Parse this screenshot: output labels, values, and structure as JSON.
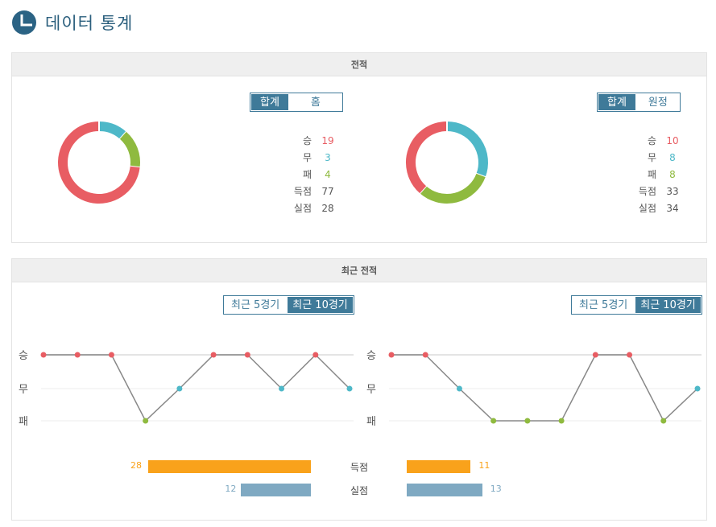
{
  "page": {
    "title": "데이터 통계"
  },
  "colors": {
    "win": "#e85d63",
    "draw": "#4eb8c8",
    "loss": "#8fba3f",
    "accent": "#3f7a99",
    "scored": "#f9a21b",
    "conceded": "#7fa9c2"
  },
  "record": {
    "title": "전적",
    "home": {
      "tabs": [
        {
          "label": "합계",
          "active": true
        },
        {
          "label": "홈",
          "active": false
        }
      ],
      "stats": [
        {
          "label": "승",
          "value": "19"
        },
        {
          "label": "무",
          "value": "3"
        },
        {
          "label": "패",
          "value": "4"
        },
        {
          "label": "득점",
          "value": "77"
        },
        {
          "label": "실점",
          "value": "28"
        }
      ],
      "donut": {
        "win": 19,
        "draw": 3,
        "loss": 4
      }
    },
    "away": {
      "tabs": [
        {
          "label": "합계",
          "active": true
        },
        {
          "label": "원정",
          "active": false
        }
      ],
      "stats": [
        {
          "label": "승",
          "value": "10"
        },
        {
          "label": "무",
          "value": "8"
        },
        {
          "label": "패",
          "value": "8"
        },
        {
          "label": "득점",
          "value": "33"
        },
        {
          "label": "실점",
          "value": "34"
        }
      ],
      "donut": {
        "win": 10,
        "draw": 8,
        "loss": 8
      }
    }
  },
  "recent": {
    "title": "최근 전적",
    "row_labels": [
      "승",
      "무",
      "패"
    ],
    "home": {
      "tabs": [
        {
          "label": "최근 5경기",
          "active": false
        },
        {
          "label": "최근 10경기",
          "active": true
        }
      ],
      "results": [
        "W",
        "W",
        "W",
        "L",
        "D",
        "W",
        "W",
        "D",
        "W",
        "D"
      ]
    },
    "away": {
      "tabs": [
        {
          "label": "최근 5경기",
          "active": false
        },
        {
          "label": "최근 10경기",
          "active": true
        }
      ],
      "results": [
        "W",
        "W",
        "D",
        "L",
        "L",
        "L",
        "W",
        "W",
        "L",
        "D"
      ]
    },
    "bars": {
      "scored_label": "득점",
      "conceded_label": "실점",
      "home_scored": 28,
      "home_conceded": 12,
      "away_scored": 11,
      "away_conceded": 13
    }
  }
}
